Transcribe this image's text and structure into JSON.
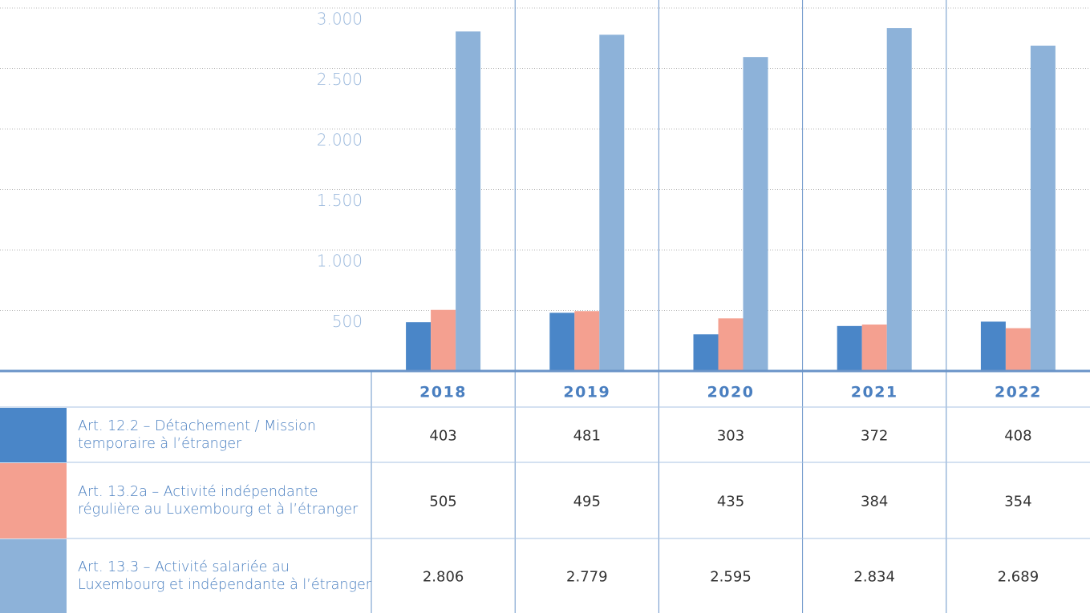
{
  "chart_data": {
    "type": "bar",
    "categories": [
      "2018",
      "2019",
      "2020",
      "2021",
      "2022"
    ],
    "series": [
      {
        "name": "Art. 12.2 – Détachement / Mission temporaire à l’étranger",
        "color": "#4a86c8",
        "values": [
          403,
          481,
          303,
          372,
          408
        ]
      },
      {
        "name": "Art. 13.2a – Activité indépendante régulière au Luxembourg et à l’étranger",
        "color": "#f4a090",
        "values": [
          505,
          495,
          435,
          384,
          354
        ]
      },
      {
        "name": "Art. 13.3 – Activité salariée au Luxembourg et indépendante à l’étranger",
        "color": "#8db2d9",
        "values": [
          2806,
          2779,
          2595,
          2834,
          2689
        ],
        "value_labels": [
          "2.806",
          "2.779",
          "2.595",
          "2.834",
          "2.689"
        ]
      }
    ],
    "ylim": [
      0,
      3000
    ],
    "yticks": [
      500,
      {
        "value": 1000,
        "label": "1.000"
      },
      {
        "value": 1500,
        "label": "1.500"
      },
      {
        "value": 2000,
        "label": "2.000"
      },
      {
        "value": 2500,
        "label": "2.500"
      },
      {
        "value": 3000,
        "label": "3.000"
      }
    ],
    "grid": true
  }
}
